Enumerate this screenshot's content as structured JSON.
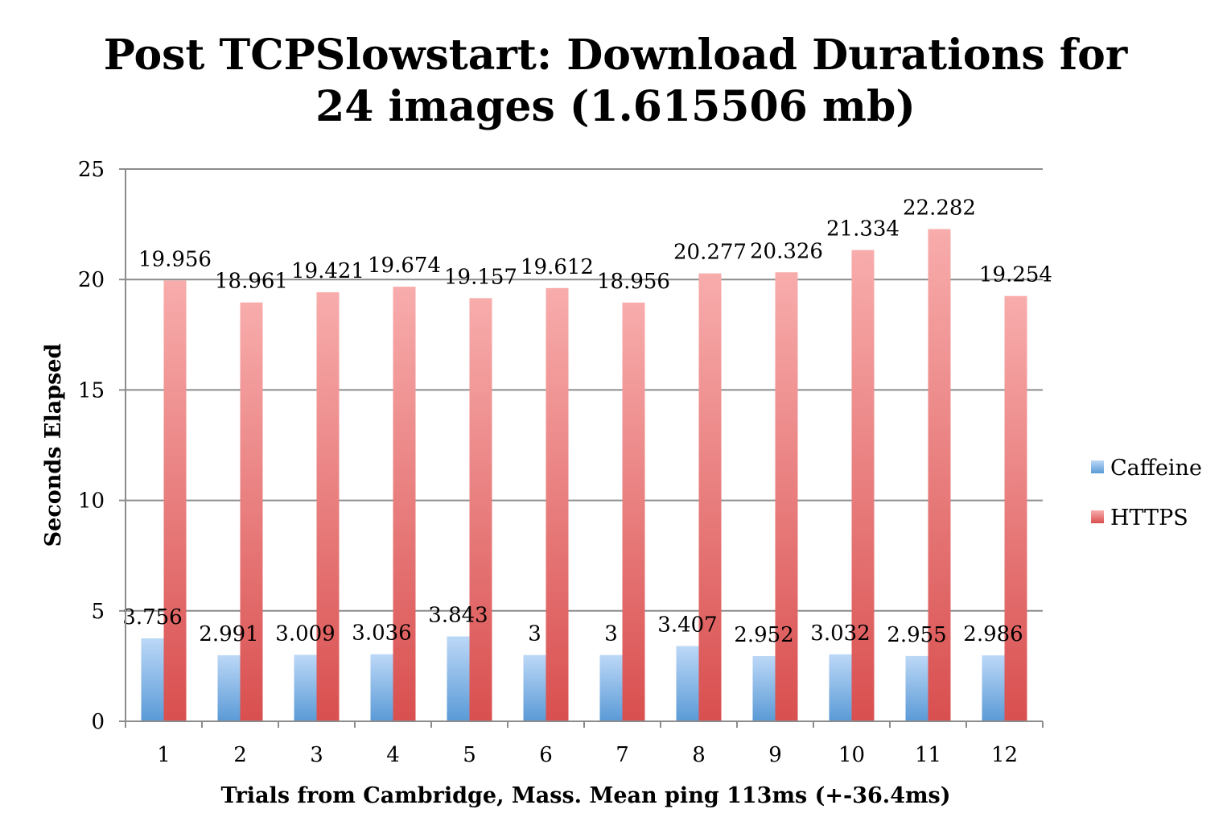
{
  "chart_data": {
    "type": "bar",
    "title_lines": [
      "Post TCPSlowstart: Download Durations for",
      "24 images (1.615506 mb)"
    ],
    "xlabel": "Trials from Cambridge, Mass. Mean ping 113ms (+-36.4ms)",
    "ylabel": "Seconds Elapsed",
    "ylim": [
      0,
      25
    ],
    "yticks": [
      "0",
      "5",
      "10",
      "15",
      "20",
      "25"
    ],
    "categories": [
      "1",
      "2",
      "3",
      "4",
      "5",
      "6",
      "7",
      "8",
      "9",
      "10",
      "11",
      "12"
    ],
    "grid": true,
    "legend_position": "right",
    "series": [
      {
        "name": "Caffeine",
        "color": "#5b9bd5",
        "values": [
          3.756,
          2.991,
          3.009,
          3.036,
          3.843,
          3,
          3,
          3.407,
          2.952,
          3.032,
          2.955,
          2.986
        ],
        "labels": [
          "3.756",
          "2.991",
          "3.009",
          "3.036",
          "3.843",
          "3",
          "3",
          "3.407",
          "2.952",
          "3.032",
          "2.955",
          "2.986"
        ]
      },
      {
        "name": "HTTPS",
        "color": "#e06666",
        "values": [
          19.956,
          18.961,
          19.421,
          19.674,
          19.157,
          19.612,
          18.956,
          20.277,
          20.326,
          21.334,
          22.282,
          19.254
        ],
        "labels": [
          "19.956",
          "18.961",
          "19.421",
          "19.674",
          "19.157",
          "19.612",
          "18.956",
          "20.277",
          "20.326",
          "21.334",
          "22.282",
          "19.254"
        ]
      }
    ]
  }
}
